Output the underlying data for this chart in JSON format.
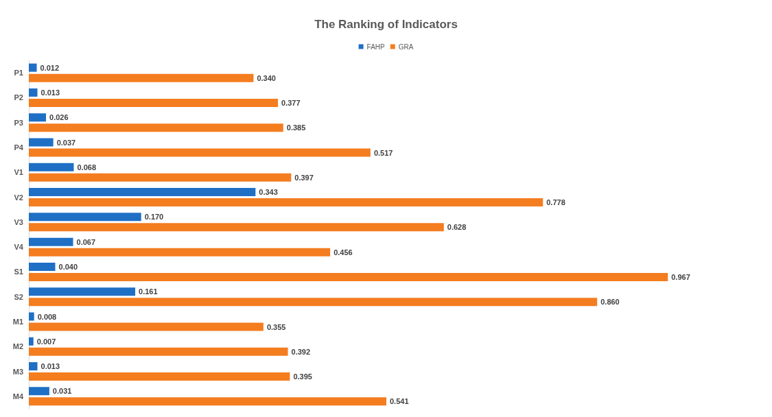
{
  "chart_data": {
    "type": "bar",
    "title": "The Ranking of Indicators",
    "orientation": "horizontal",
    "categories": [
      "P1",
      "P2",
      "P3",
      "P4",
      "V1",
      "V2",
      "V3",
      "V4",
      "S1",
      "S2",
      "M1",
      "M2",
      "M3",
      "M4"
    ],
    "series": [
      {
        "name": "FAHP",
        "color": "#1f6fc5",
        "values": [
          0.012,
          0.013,
          0.026,
          0.037,
          0.068,
          0.343,
          0.17,
          0.067,
          0.04,
          0.161,
          0.008,
          0.007,
          0.013,
          0.031
        ],
        "value_labels": [
          "0.012",
          "0.013",
          "0.026",
          "0.037",
          "0.068",
          "0.343",
          "0.170",
          "0.067",
          "0.040",
          "0.161",
          "0.008",
          "0.007",
          "0.013",
          "0.031"
        ]
      },
      {
        "name": "GRA",
        "color": "#f47d20",
        "values": [
          0.34,
          0.377,
          0.385,
          0.517,
          0.397,
          0.778,
          0.628,
          0.456,
          0.967,
          0.86,
          0.355,
          0.392,
          0.395,
          0.541
        ],
        "value_labels": [
          "0.340",
          "0.377",
          "0.385",
          "0.517",
          "0.397",
          "0.778",
          "0.628",
          "0.456",
          "0.967",
          "0.860",
          "0.355",
          "0.392",
          "0.395",
          "0.541"
        ]
      }
    ],
    "legend": "top",
    "grid": false,
    "tick_labels": "y"
  }
}
